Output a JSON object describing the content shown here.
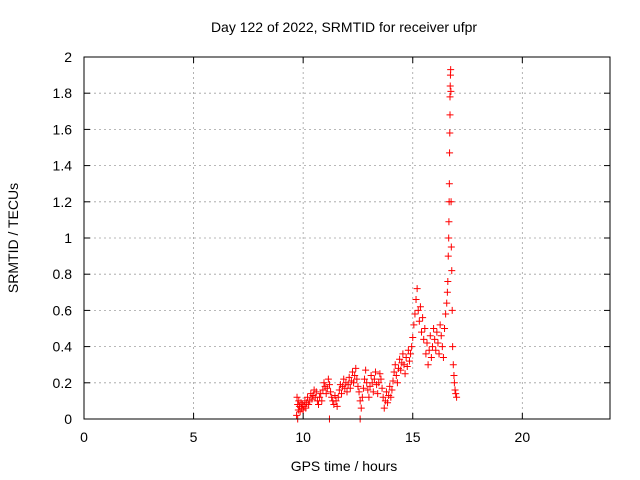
{
  "chart_data": {
    "type": "scatter",
    "title": "Day 122 of 2022, SRMTID for receiver ufpr",
    "xlabel": "GPS time / hours",
    "ylabel": "SRMTID / TECUs",
    "xlim": [
      0,
      24
    ],
    "ylim": [
      0,
      2
    ],
    "xticks": [
      0,
      5,
      10,
      15,
      20
    ],
    "yticks": [
      0,
      0.2,
      0.4,
      0.6,
      0.8,
      1,
      1.2,
      1.4,
      1.6,
      1.8,
      2
    ],
    "ytick_labels": [
      "0",
      "0.2",
      "0.4",
      "0.6",
      "0.8",
      "1",
      "1.2",
      "1.4",
      "1.6",
      "1.8",
      "2"
    ],
    "grid": true,
    "marker": "+",
    "color": "#ff0000",
    "series": [
      {
        "name": "SRMTID",
        "x": [
          9.7,
          9.72,
          9.75,
          9.78,
          9.8,
          9.83,
          9.86,
          9.9,
          9.93,
          9.96,
          10.0,
          10.04,
          10.08,
          10.12,
          10.16,
          10.2,
          10.25,
          10.3,
          10.35,
          10.4,
          10.45,
          10.5,
          10.55,
          10.6,
          10.65,
          10.7,
          10.75,
          10.8,
          10.85,
          10.9,
          10.95,
          11.0,
          11.05,
          11.1,
          11.15,
          11.2,
          11.25,
          11.3,
          11.35,
          11.4,
          11.45,
          11.5,
          11.55,
          11.6,
          11.65,
          11.7,
          11.75,
          11.8,
          11.85,
          11.9,
          11.95,
          12.0,
          12.05,
          12.1,
          12.15,
          12.2,
          12.25,
          12.3,
          12.35,
          12.4,
          12.45,
          12.5,
          12.55,
          12.6,
          12.65,
          12.7,
          12.75,
          12.8,
          12.85,
          12.9,
          12.95,
          13.0,
          13.05,
          13.1,
          13.15,
          13.2,
          13.25,
          13.3,
          13.35,
          13.4,
          13.45,
          13.5,
          13.55,
          13.6,
          13.65,
          13.7,
          13.75,
          13.8,
          13.85,
          13.9,
          13.95,
          14.0,
          14.05,
          14.1,
          14.15,
          14.2,
          14.25,
          14.3,
          14.35,
          14.4,
          14.45,
          14.5,
          14.55,
          14.6,
          14.65,
          14.7,
          14.75,
          14.8,
          14.85,
          14.9,
          14.95,
          15.0,
          15.05,
          15.1,
          15.15,
          15.2,
          15.25,
          15.3,
          15.35,
          15.4,
          15.45,
          15.5,
          15.55,
          15.6,
          15.65,
          15.7,
          15.75,
          15.8,
          15.85,
          15.9,
          15.95,
          16.0,
          16.05,
          16.1,
          16.15,
          16.2,
          16.25,
          16.3,
          16.35,
          16.4,
          16.45,
          16.5,
          16.55,
          16.58,
          16.6,
          16.62,
          16.64,
          16.65,
          16.66,
          16.67,
          16.68,
          16.69,
          16.7,
          16.7,
          16.71,
          16.72,
          16.73,
          16.74,
          16.75,
          16.76,
          16.78,
          16.8,
          16.82,
          16.85,
          16.88,
          16.9,
          16.93,
          16.96,
          17.0,
          9.75,
          11.2,
          12.6
        ],
        "y": [
          0.02,
          0.12,
          0.08,
          0.05,
          0.1,
          0.07,
          0.04,
          0.09,
          0.06,
          0.08,
          0.05,
          0.07,
          0.1,
          0.06,
          0.09,
          0.12,
          0.08,
          0.1,
          0.14,
          0.11,
          0.13,
          0.16,
          0.12,
          0.15,
          0.1,
          0.08,
          0.12,
          0.14,
          0.1,
          0.16,
          0.2,
          0.18,
          0.14,
          0.17,
          0.22,
          0.19,
          0.15,
          0.12,
          0.1,
          0.08,
          0.13,
          0.1,
          0.07,
          0.12,
          0.16,
          0.19,
          0.14,
          0.18,
          0.22,
          0.17,
          0.2,
          0.15,
          0.19,
          0.23,
          0.17,
          0.21,
          0.26,
          0.2,
          0.24,
          0.28,
          0.22,
          0.18,
          0.15,
          0.1,
          0.06,
          0.12,
          0.17,
          0.22,
          0.27,
          0.2,
          0.16,
          0.12,
          0.18,
          0.24,
          0.2,
          0.15,
          0.22,
          0.26,
          0.19,
          0.14,
          0.2,
          0.25,
          0.22,
          0.17,
          0.12,
          0.06,
          0.1,
          0.15,
          0.09,
          0.13,
          0.18,
          0.12,
          0.16,
          0.21,
          0.26,
          0.3,
          0.24,
          0.2,
          0.28,
          0.33,
          0.27,
          0.31,
          0.36,
          0.3,
          0.25,
          0.34,
          0.29,
          0.38,
          0.32,
          0.36,
          0.4,
          0.45,
          0.52,
          0.58,
          0.66,
          0.72,
          0.6,
          0.54,
          0.62,
          0.48,
          0.56,
          0.44,
          0.5,
          0.36,
          0.42,
          0.3,
          0.38,
          0.46,
          0.34,
          0.4,
          0.5,
          0.44,
          0.38,
          0.48,
          0.42,
          0.36,
          0.52,
          0.46,
          0.4,
          0.34,
          0.5,
          0.58,
          0.64,
          0.7,
          0.76,
          0.9,
          1.0,
          1.09,
          1.2,
          1.3,
          1.47,
          1.58,
          1.68,
          1.78,
          1.84,
          1.9,
          1.93,
          1.81,
          1.2,
          0.95,
          0.82,
          0.6,
          0.4,
          0.3,
          0.24,
          0.2,
          0.16,
          0.14,
          0.12,
          0.0,
          0.0,
          0.0
        ]
      }
    ]
  }
}
